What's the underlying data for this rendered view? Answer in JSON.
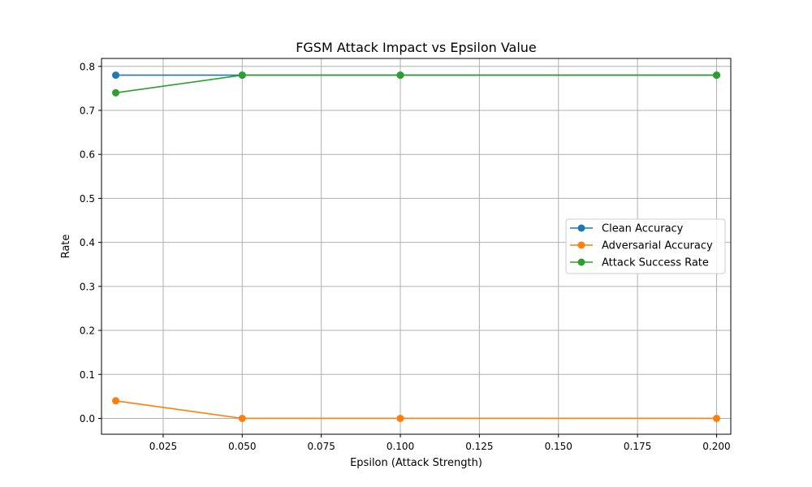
{
  "chart_data": {
    "type": "line",
    "title": "FGSM Attack Impact vs Epsilon Value",
    "xlabel": "Epsilon (Attack Strength)",
    "ylabel": "Rate",
    "xlim": [
      0.0055,
      0.2045
    ],
    "ylim": [
      -0.036,
      0.818
    ],
    "x_ticks": [
      "0.025",
      "0.050",
      "0.075",
      "0.100",
      "0.125",
      "0.150",
      "0.175",
      "0.200"
    ],
    "y_ticks": [
      "0.0",
      "0.1",
      "0.2",
      "0.3",
      "0.4",
      "0.5",
      "0.6",
      "0.7",
      "0.8"
    ],
    "grid": true,
    "legend_position": "center-right",
    "x": [
      0.01,
      0.05,
      0.1,
      0.2
    ],
    "series": [
      {
        "name": "Clean Accuracy",
        "color": "#1f77b4",
        "values": [
          0.78,
          0.78,
          0.78,
          0.78
        ]
      },
      {
        "name": "Adversarial Accuracy",
        "color": "#ff7f0e",
        "values": [
          0.04,
          0.0,
          0.0,
          0.0
        ]
      },
      {
        "name": "Attack Success Rate",
        "color": "#2ca02c",
        "values": [
          0.74,
          0.78,
          0.78,
          0.78
        ]
      }
    ]
  }
}
